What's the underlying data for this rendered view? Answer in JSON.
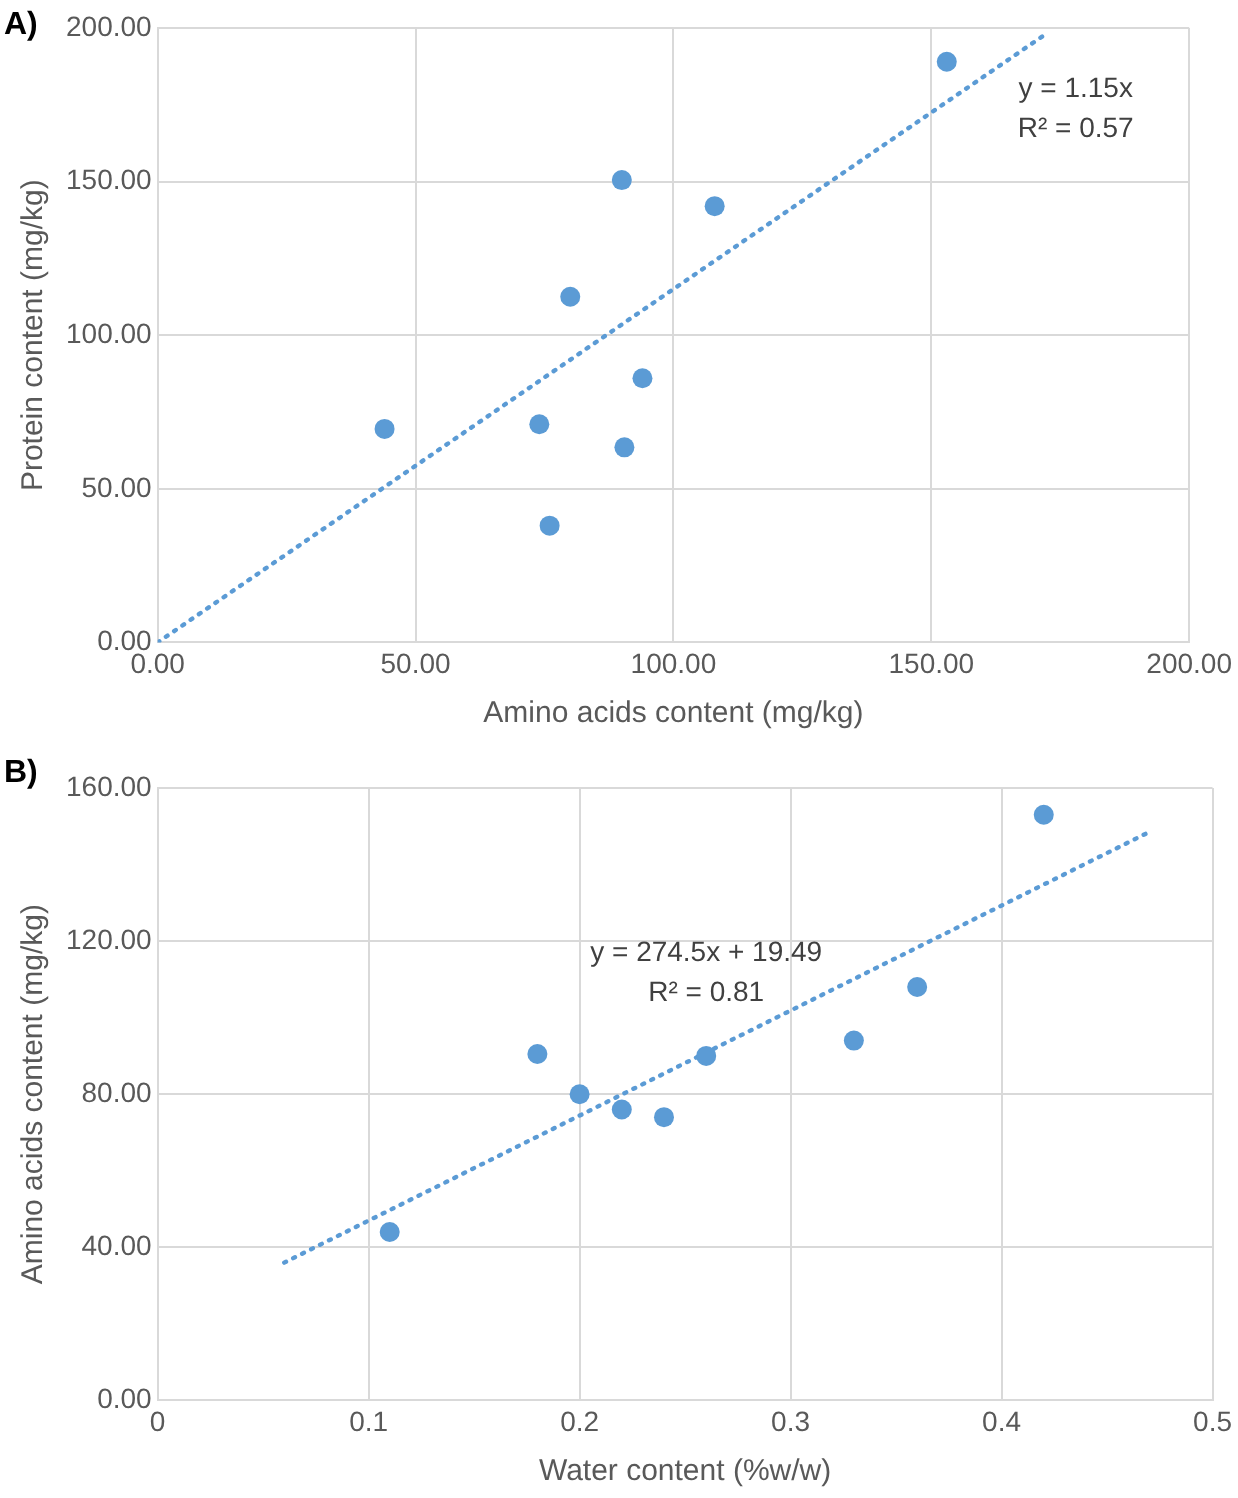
{
  "chart_data": [
    {
      "type": "scatter",
      "title": "A)",
      "xlabel": "Amino acids content (mg/kg)",
      "ylabel": "Protein content (mg/kg)",
      "x": [
        44,
        74,
        76,
        80,
        90,
        90.5,
        94,
        108,
        153
      ],
      "series": [
        {
          "color": "#5b9bd5",
          "marker": "circle",
          "values": [
            69.5,
            71,
            38,
            112.5,
            150.5,
            63.5,
            86,
            142,
            189
          ]
        },
        {
          "type": "line",
          "color": "#5b9bd5",
          "line_style": "dotted",
          "marker": "none",
          "x": [
            0,
            172
          ],
          "values": [
            0,
            197.8
          ]
        }
      ],
      "xlim": [
        0,
        200
      ],
      "xticks": [
        {
          "value": 0,
          "label": "0.00"
        },
        {
          "value": 50,
          "label": "50.00"
        },
        {
          "value": 100,
          "label": "100.00"
        },
        {
          "value": 150,
          "label": "150.00"
        },
        {
          "value": 200,
          "label": "200.00"
        }
      ],
      "ylim": [
        0,
        200
      ],
      "yticks": [
        {
          "value": 0,
          "label": "0.00"
        },
        {
          "value": 50,
          "label": "50.00"
        },
        {
          "value": 100,
          "label": "100.00"
        },
        {
          "value": 150,
          "label": "150.00"
        },
        {
          "value": 200,
          "label": "200.00"
        }
      ],
      "grid": true,
      "legend": false,
      "annotations": [
        "y = 1.15x",
        "R² = 0.57"
      ]
    },
    {
      "type": "scatter",
      "title": "B)",
      "xlabel": "Water content (%w/w)",
      "ylabel": "Amino acids content (mg/kg)",
      "x": [
        0.11,
        0.18,
        0.2,
        0.22,
        0.24,
        0.26,
        0.33,
        0.36,
        0.42
      ],
      "series": [
        {
          "color": "#5b9bd5",
          "marker": "circle",
          "values": [
            44,
            90.5,
            80,
            76,
            74,
            90,
            94,
            108,
            153
          ]
        },
        {
          "type": "line",
          "color": "#5b9bd5",
          "line_style": "dotted",
          "marker": "none",
          "x": [
            0.06,
            0.47
          ],
          "values": [
            36,
            148.5
          ]
        }
      ],
      "xlim": [
        0,
        0.5
      ],
      "xticks": [
        0,
        0.1,
        0.2,
        0.3,
        0.4,
        0.5
      ],
      "ylim": [
        0,
        160
      ],
      "yticks": [
        {
          "value": 0,
          "label": "0.00"
        },
        {
          "value": 40,
          "label": "40.00"
        },
        {
          "value": 80,
          "label": "80.00"
        },
        {
          "value": 120,
          "label": "120.00"
        },
        {
          "value": 160,
          "label": "160.00"
        }
      ],
      "grid": true,
      "legend": false,
      "annotations": [
        "y = 274.5x + 19.49",
        "R² = 0.81"
      ]
    }
  ]
}
